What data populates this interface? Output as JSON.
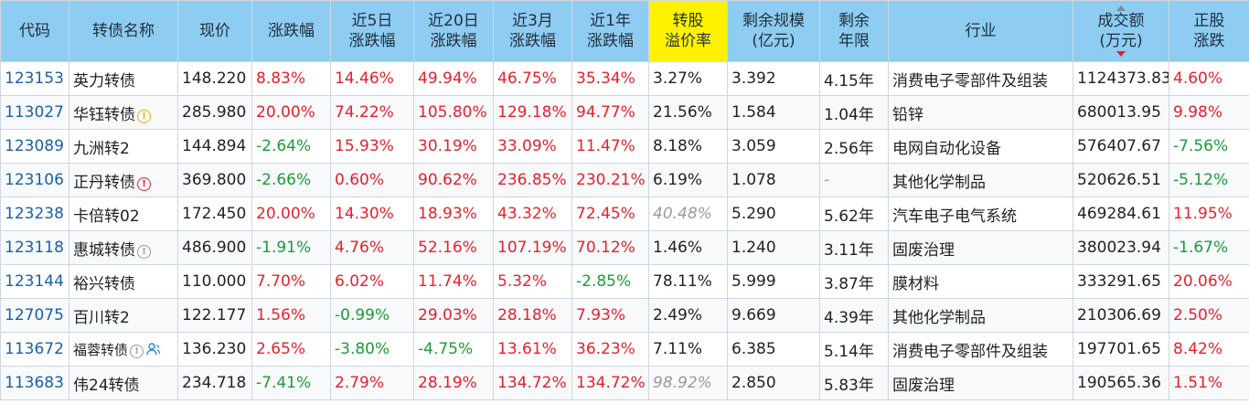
{
  "headers": {
    "code": "代码",
    "name": "转债名称",
    "price": "现价",
    "change": "涨跌幅",
    "chg5d_1": "近5日",
    "chg5d_2": "涨跌幅",
    "chg20d_1": "近20日",
    "chg20d_2": "涨跌幅",
    "chg3m_1": "近3月",
    "chg3m_2": "涨跌幅",
    "chg1y_1": "近1年",
    "chg1y_2": "涨跌幅",
    "premium_1": "转股",
    "premium_2": "溢价率",
    "scale_1": "剩余规模",
    "scale_2": "(亿元)",
    "years_1": "剩余",
    "years_2": "年限",
    "industry": "行业",
    "volume_1": "成交额",
    "volume_2": "(万元)",
    "stock_1": "正股",
    "stock_2": "涨跌"
  },
  "colors": {
    "header_bg": "#8ecdf1",
    "highlight_header": "#fff200",
    "up": "#e8202a",
    "down": "#1a9c36",
    "code": "#1a5fa8"
  },
  "rows": [
    {
      "code": "123153",
      "name": "英力转债",
      "price": "148.220",
      "chg": "8.83%",
      "chg5": "14.46%",
      "chg20": "49.94%",
      "chg3m": "46.75%",
      "chg1y": "35.34%",
      "premium": "3.27%",
      "scale": "3.392",
      "years": "4.15年",
      "industry": "消费电子零部件及组装",
      "volume": "1124373.83",
      "stock": "4.60%"
    },
    {
      "code": "113027",
      "name": "华钰转债",
      "badge": "!",
      "price": "285.980",
      "chg": "20.00%",
      "chg5": "74.22%",
      "chg20": "105.80%",
      "chg3m": "129.18%",
      "chg1y": "94.77%",
      "premium": "21.56%",
      "scale": "1.584",
      "years": "1.04年",
      "industry": "铅锌",
      "volume": "680013.95",
      "stock": "9.98%"
    },
    {
      "code": "123089",
      "name": "九洲转2",
      "price": "144.894",
      "chg": "-2.64%",
      "chg5": "15.93%",
      "chg20": "30.19%",
      "chg3m": "33.09%",
      "chg1y": "11.47%",
      "premium": "8.18%",
      "scale": "3.059",
      "years": "2.56年",
      "industry": "电网自动化设备",
      "volume": "576407.67",
      "stock": "-7.56%"
    },
    {
      "code": "123106",
      "name": "正丹转债",
      "badge": "!",
      "price": "369.800",
      "chg": "-2.66%",
      "chg5": "0.60%",
      "chg20": "90.62%",
      "chg3m": "236.85%",
      "chg1y": "230.21%",
      "premium": "6.19%",
      "scale": "1.078",
      "years": "-",
      "industry": "其他化学制品",
      "volume": "520626.51",
      "stock": "-5.12%"
    },
    {
      "code": "123238",
      "name": "卡倍转02",
      "price": "172.450",
      "chg": "20.00%",
      "chg5": "14.30%",
      "chg20": "18.93%",
      "chg3m": "43.32%",
      "chg1y": "72.45%",
      "premium": "40.48%",
      "scale": "5.290",
      "years": "5.62年",
      "industry": "汽车电子电气系统",
      "volume": "469284.61",
      "stock": "11.95%"
    },
    {
      "code": "123118",
      "name": "惠城转债",
      "badge": "!",
      "price": "486.900",
      "chg": "-1.91%",
      "chg5": "4.76%",
      "chg20": "52.16%",
      "chg3m": "107.19%",
      "chg1y": "70.12%",
      "premium": "1.46%",
      "scale": "1.240",
      "years": "3.11年",
      "industry": "固废治理",
      "volume": "380023.94",
      "stock": "-1.67%"
    },
    {
      "code": "123144",
      "name": "裕兴转债",
      "price": "110.000",
      "chg": "7.70%",
      "chg5": "6.02%",
      "chg20": "11.74%",
      "chg3m": "5.32%",
      "chg1y": "-2.85%",
      "premium": "78.11%",
      "scale": "5.999",
      "years": "3.87年",
      "industry": "膜材料",
      "volume": "333291.65",
      "stock": "20.06%"
    },
    {
      "code": "127075",
      "name": "百川转2",
      "price": "122.177",
      "chg": "1.56%",
      "chg5": "-0.99%",
      "chg20": "29.03%",
      "chg3m": "28.18%",
      "chg1y": "7.93%",
      "premium": "2.49%",
      "scale": "9.669",
      "years": "4.39年",
      "industry": "其他化学制品",
      "volume": "210306.69",
      "stock": "2.50%"
    },
    {
      "code": "113672",
      "name": "福蓉转债",
      "badge": "!",
      "price": "136.230",
      "chg": "2.65%",
      "chg5": "-3.80%",
      "chg20": "-4.75%",
      "chg3m": "13.61%",
      "chg1y": "36.23%",
      "premium": "7.11%",
      "scale": "6.385",
      "years": "5.14年",
      "industry": "消费电子零部件及组装",
      "volume": "197701.65",
      "stock": "8.42%"
    },
    {
      "code": "113683",
      "name": "伟24转债",
      "price": "234.718",
      "chg": "-7.41%",
      "chg5": "2.79%",
      "chg20": "28.19%",
      "chg3m": "134.72%",
      "chg1y": "134.72%",
      "premium": "98.92%",
      "scale": "2.850",
      "years": "5.83年",
      "industry": "固废治理",
      "volume": "190565.36",
      "stock": "1.51%"
    }
  ]
}
